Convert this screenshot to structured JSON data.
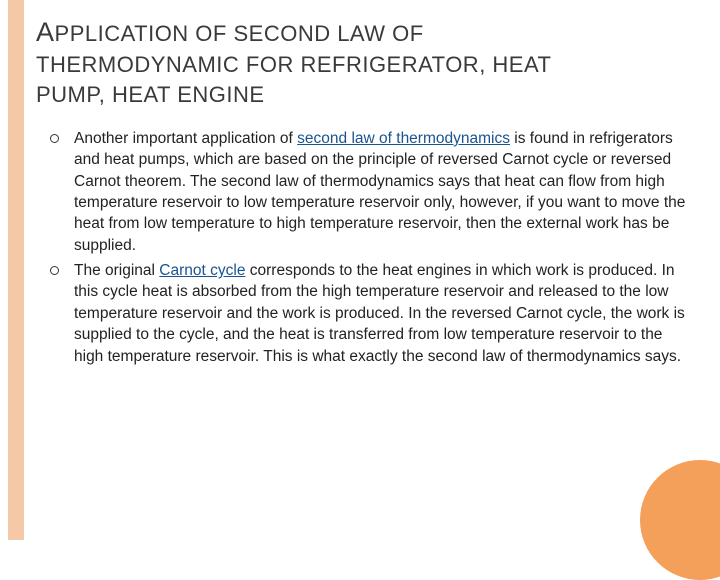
{
  "colors": {
    "left_bar": "#f5c9a8",
    "corner_circle": "#f5a05a",
    "background": "#ffffff",
    "title_text": "#3a3a3a",
    "body_text": "#222222",
    "link": "#1a5490",
    "bullet_border": "#333333"
  },
  "title": {
    "line1_first": "A",
    "line1_rest": "PPLICATION OF SECOND LAW OF",
    "line2": "THERMODYNAMIC FOR REFRIGERATOR, HEAT",
    "line3": "PUMP, HEAT ENGINE",
    "fontsize": 22,
    "firstcap_fontsize": 27
  },
  "bullets": [
    {
      "pre": "Another important application of ",
      "link1": "second law of thermodynamics",
      "post": " is found in refrigerators and heat pumps, which are based on the principle of reversed Carnot cycle or reversed Carnot theorem. The second law of thermodynamics says that heat can flow from high temperature reservoir to low temperature reservoir only, however, if you want to move the heat from low temperature to high temperature reservoir, then the external work has be supplied."
    },
    {
      "pre": "The original ",
      "link1": "Carnot cycle",
      "post": " corresponds to the heat engines in which work is produced. In this cycle heat is absorbed from the high temperature reservoir and released to the low temperature reservoir and the work is produced. In the reversed Carnot cycle, the work is supplied to the cycle, and the heat is transferred from low temperature reservoir to the high temperature reservoir. This is what exactly the second law of thermodynamics says."
    }
  ],
  "body_fontsize": 15.5
}
